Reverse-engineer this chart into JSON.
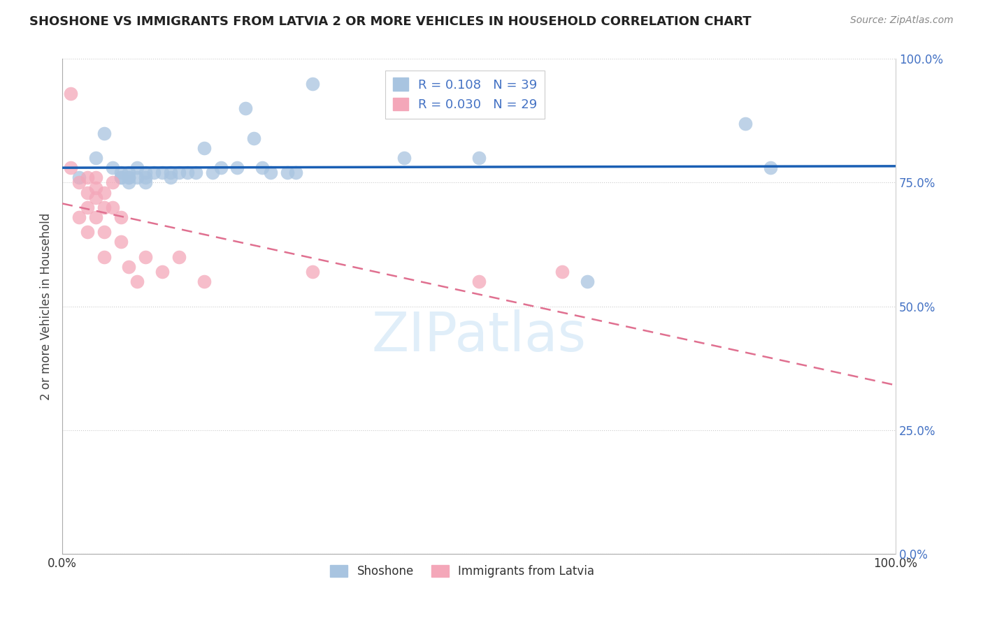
{
  "title": "SHOSHONE VS IMMIGRANTS FROM LATVIA 2 OR MORE VEHICLES IN HOUSEHOLD CORRELATION CHART",
  "source": "Source: ZipAtlas.com",
  "ylabel": "2 or more Vehicles in Household",
  "xlim": [
    0,
    1
  ],
  "ylim": [
    0,
    1
  ],
  "ytick_labels": [
    "0.0%",
    "25.0%",
    "50.0%",
    "75.0%",
    "100.0%"
  ],
  "ytick_values": [
    0.0,
    0.25,
    0.5,
    0.75,
    1.0
  ],
  "watermark_text": "ZIPatlas",
  "legend1_label": "R = 0.108   N = 39",
  "legend2_label": "R = 0.030   N = 29",
  "shoshone_color": "#a8c4e0",
  "latvia_color": "#f4a7b9",
  "line1_color": "#1a5fb4",
  "line2_color": "#e07090",
  "shoshone_x": [
    0.02,
    0.04,
    0.05,
    0.06,
    0.07,
    0.07,
    0.07,
    0.08,
    0.08,
    0.08,
    0.08,
    0.09,
    0.09,
    0.1,
    0.1,
    0.1,
    0.11,
    0.12,
    0.13,
    0.13,
    0.14,
    0.15,
    0.16,
    0.17,
    0.18,
    0.19,
    0.21,
    0.22,
    0.23,
    0.24,
    0.25,
    0.27,
    0.28,
    0.3,
    0.41,
    0.5,
    0.63,
    0.82,
    0.85
  ],
  "shoshone_y": [
    0.76,
    0.8,
    0.85,
    0.78,
    0.77,
    0.76,
    0.76,
    0.77,
    0.76,
    0.76,
    0.75,
    0.78,
    0.76,
    0.77,
    0.76,
    0.75,
    0.77,
    0.77,
    0.77,
    0.76,
    0.77,
    0.77,
    0.77,
    0.82,
    0.77,
    0.78,
    0.78,
    0.9,
    0.84,
    0.78,
    0.77,
    0.77,
    0.77,
    0.95,
    0.8,
    0.8,
    0.55,
    0.87,
    0.78
  ],
  "latvia_x": [
    0.01,
    0.01,
    0.02,
    0.02,
    0.03,
    0.03,
    0.03,
    0.03,
    0.04,
    0.04,
    0.04,
    0.04,
    0.05,
    0.05,
    0.05,
    0.05,
    0.06,
    0.06,
    0.07,
    0.07,
    0.08,
    0.09,
    0.1,
    0.12,
    0.14,
    0.17,
    0.3,
    0.5,
    0.6
  ],
  "latvia_y": [
    0.78,
    0.93,
    0.75,
    0.68,
    0.76,
    0.73,
    0.7,
    0.65,
    0.76,
    0.74,
    0.72,
    0.68,
    0.73,
    0.7,
    0.65,
    0.6,
    0.75,
    0.7,
    0.68,
    0.63,
    0.58,
    0.55,
    0.6,
    0.57,
    0.6,
    0.55,
    0.57,
    0.55,
    0.57
  ],
  "bottom_legend_labels": [
    "Shoshone",
    "Immigrants from Latvia"
  ]
}
